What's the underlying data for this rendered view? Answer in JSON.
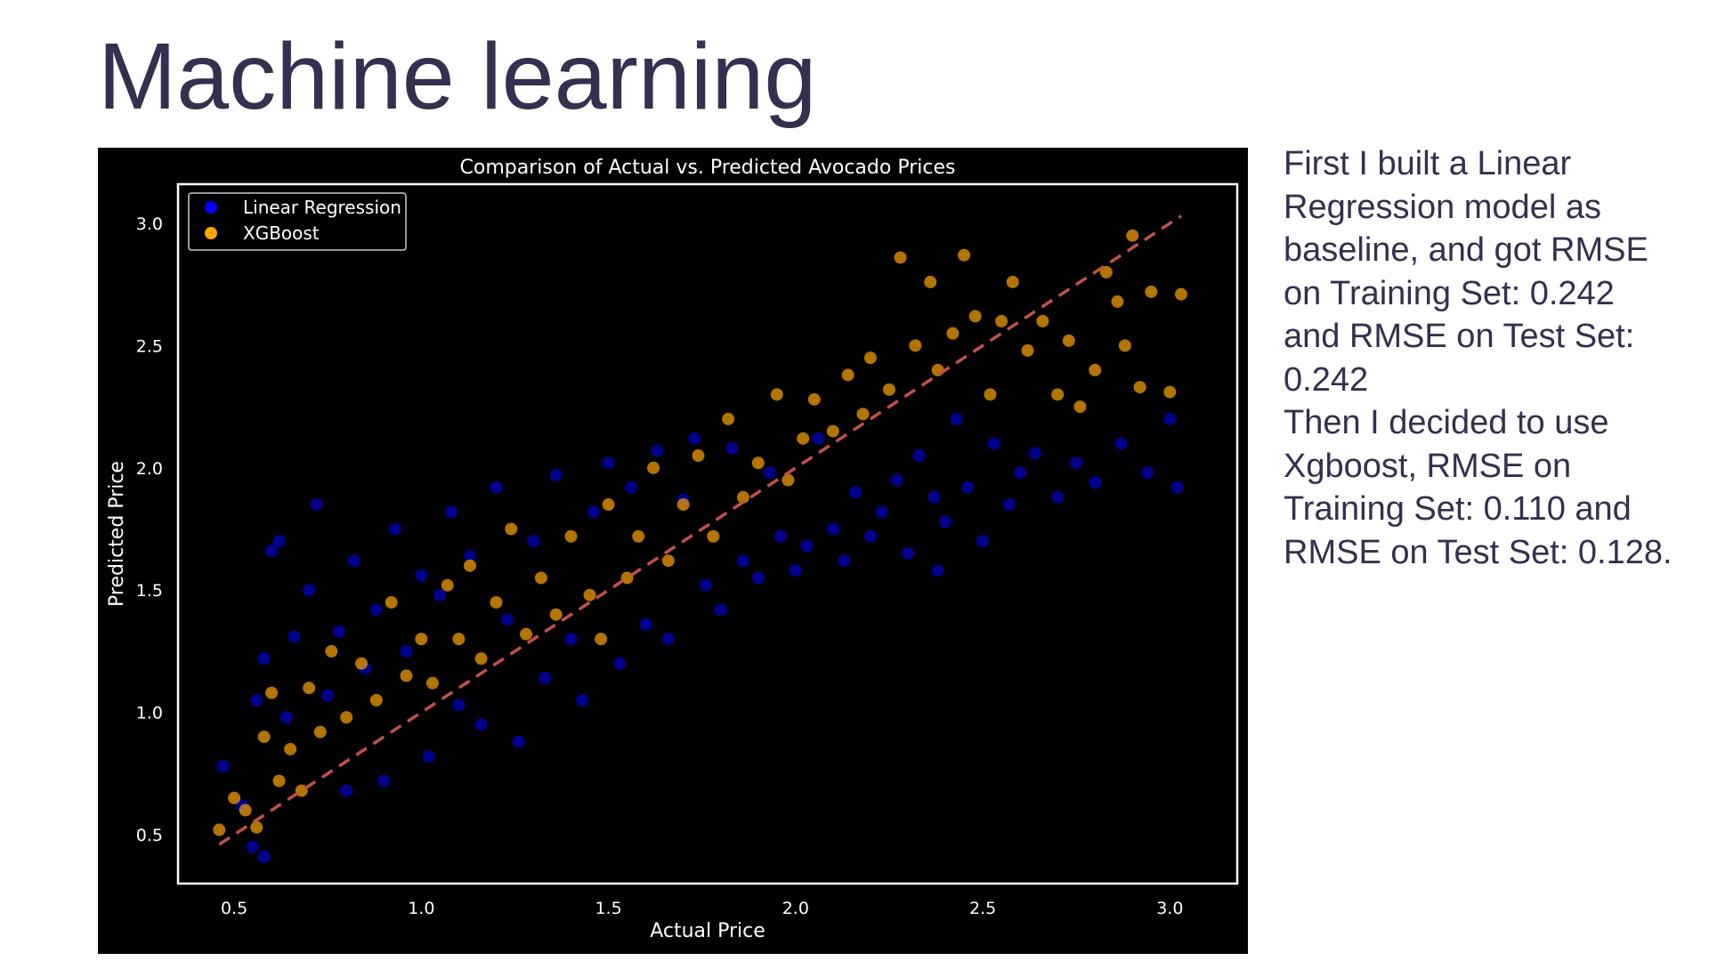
{
  "slide": {
    "title": "Machine learning",
    "description": "First I built a Linear Regression model as baseline, and got RMSE on Training Set: 0.242 and RMSE on Test Set: 0.242\nThen I decided to use Xgboost, RMSE on Training Set: 0.110 and RMSE on Test Set: 0.128.",
    "text_color": "#34304f"
  },
  "chart_data": {
    "type": "scatter",
    "title": "Comparison of Actual vs. Predicted Avocado Prices",
    "xlabel": "Actual Price",
    "ylabel": "Predicted Price",
    "xlim": [
      0.35,
      3.18
    ],
    "ylim": [
      0.3,
      3.16
    ],
    "xticks": [
      "0.5",
      "1.0",
      "1.5",
      "2.0",
      "2.5",
      "3.0"
    ],
    "yticks": [
      "0.5",
      "1.0",
      "1.5",
      "2.0",
      "2.5",
      "3.0"
    ],
    "background": "#000000",
    "legend_position": "top-left",
    "grid": false,
    "reference_line": {
      "from": [
        0.46,
        0.46
      ],
      "to": [
        3.03,
        3.03
      ],
      "style": "dashed",
      "color": "#c0504d"
    },
    "series": [
      {
        "name": "Linear Regression",
        "color": "#0000ff",
        "points": [
          [
            0.47,
            0.78
          ],
          [
            0.52,
            0.62
          ],
          [
            0.55,
            0.45
          ],
          [
            0.58,
            0.41
          ],
          [
            0.56,
            1.05
          ],
          [
            0.58,
            1.22
          ],
          [
            0.6,
            1.66
          ],
          [
            0.62,
            1.7
          ],
          [
            0.64,
            0.98
          ],
          [
            0.66,
            1.31
          ],
          [
            0.7,
            1.5
          ],
          [
            0.72,
            1.85
          ],
          [
            0.75,
            1.07
          ],
          [
            0.78,
            1.33
          ],
          [
            0.8,
            0.68
          ],
          [
            0.82,
            1.62
          ],
          [
            0.85,
            1.18
          ],
          [
            0.88,
            1.42
          ],
          [
            0.9,
            0.72
          ],
          [
            0.93,
            1.75
          ],
          [
            0.96,
            1.25
          ],
          [
            1.0,
            1.56
          ],
          [
            1.02,
            0.82
          ],
          [
            1.05,
            1.48
          ],
          [
            1.08,
            1.82
          ],
          [
            1.1,
            1.03
          ],
          [
            1.13,
            1.64
          ],
          [
            1.16,
            0.95
          ],
          [
            1.2,
            1.92
          ],
          [
            1.23,
            1.38
          ],
          [
            1.26,
            0.88
          ],
          [
            1.3,
            1.7
          ],
          [
            1.33,
            1.14
          ],
          [
            1.36,
            1.97
          ],
          [
            1.4,
            1.3
          ],
          [
            1.43,
            1.05
          ],
          [
            1.46,
            1.82
          ],
          [
            1.5,
            2.02
          ],
          [
            1.53,
            1.2
          ],
          [
            1.56,
            1.92
          ],
          [
            1.6,
            1.36
          ],
          [
            1.63,
            2.07
          ],
          [
            1.66,
            1.3
          ],
          [
            1.7,
            1.87
          ],
          [
            1.73,
            2.12
          ],
          [
            1.76,
            1.52
          ],
          [
            1.8,
            1.42
          ],
          [
            1.83,
            2.08
          ],
          [
            1.86,
            1.62
          ],
          [
            1.9,
            1.55
          ],
          [
            1.93,
            1.98
          ],
          [
            1.96,
            1.72
          ],
          [
            2.0,
            1.58
          ],
          [
            2.03,
            1.68
          ],
          [
            2.06,
            2.12
          ],
          [
            2.1,
            1.75
          ],
          [
            2.13,
            1.62
          ],
          [
            2.16,
            1.9
          ],
          [
            2.2,
            1.72
          ],
          [
            2.23,
            1.82
          ],
          [
            2.27,
            1.95
          ],
          [
            2.3,
            1.65
          ],
          [
            2.33,
            2.05
          ],
          [
            2.37,
            1.88
          ],
          [
            2.4,
            1.78
          ],
          [
            2.43,
            2.2
          ],
          [
            2.46,
            1.92
          ],
          [
            2.5,
            1.7
          ],
          [
            2.53,
            2.1
          ],
          [
            2.57,
            1.85
          ],
          [
            2.6,
            1.98
          ],
          [
            2.64,
            2.06
          ],
          [
            2.7,
            1.88
          ],
          [
            2.75,
            2.02
          ],
          [
            2.8,
            1.94
          ],
          [
            2.87,
            2.1
          ],
          [
            2.94,
            1.98
          ],
          [
            3.0,
            2.2
          ],
          [
            3.02,
            1.92
          ],
          [
            2.38,
            1.58
          ]
        ]
      },
      {
        "name": "XGBoost",
        "color": "#ffa500",
        "points": [
          [
            0.46,
            0.52
          ],
          [
            0.5,
            0.65
          ],
          [
            0.53,
            0.6
          ],
          [
            0.56,
            0.53
          ],
          [
            0.58,
            0.9
          ],
          [
            0.6,
            1.08
          ],
          [
            0.62,
            0.72
          ],
          [
            0.65,
            0.85
          ],
          [
            0.68,
            0.68
          ],
          [
            0.7,
            1.1
          ],
          [
            0.73,
            0.92
          ],
          [
            0.76,
            1.25
          ],
          [
            0.8,
            0.98
          ],
          [
            0.84,
            1.2
          ],
          [
            0.88,
            1.05
          ],
          [
            0.92,
            1.45
          ],
          [
            0.96,
            1.15
          ],
          [
            1.0,
            1.3
          ],
          [
            1.03,
            1.12
          ],
          [
            1.07,
            1.52
          ],
          [
            1.1,
            1.3
          ],
          [
            1.13,
            1.6
          ],
          [
            1.16,
            1.22
          ],
          [
            1.2,
            1.45
          ],
          [
            1.24,
            1.75
          ],
          [
            1.28,
            1.32
          ],
          [
            1.32,
            1.55
          ],
          [
            1.36,
            1.4
          ],
          [
            1.4,
            1.72
          ],
          [
            1.45,
            1.48
          ],
          [
            1.5,
            1.85
          ],
          [
            1.55,
            1.55
          ],
          [
            1.58,
            1.72
          ],
          [
            1.62,
            2.0
          ],
          [
            1.66,
            1.62
          ],
          [
            1.7,
            1.85
          ],
          [
            1.74,
            2.05
          ],
          [
            1.78,
            1.72
          ],
          [
            1.82,
            2.2
          ],
          [
            1.86,
            1.88
          ],
          [
            1.9,
            2.02
          ],
          [
            1.95,
            2.3
          ],
          [
            1.98,
            1.95
          ],
          [
            2.02,
            2.12
          ],
          [
            2.05,
            2.28
          ],
          [
            2.1,
            2.15
          ],
          [
            2.14,
            2.38
          ],
          [
            2.18,
            2.22
          ],
          [
            2.2,
            2.45
          ],
          [
            2.25,
            2.32
          ],
          [
            2.28,
            2.86
          ],
          [
            2.32,
            2.5
          ],
          [
            2.36,
            2.76
          ],
          [
            2.38,
            2.4
          ],
          [
            2.42,
            2.55
          ],
          [
            2.45,
            2.87
          ],
          [
            2.48,
            2.62
          ],
          [
            2.52,
            2.3
          ],
          [
            2.55,
            2.6
          ],
          [
            2.58,
            2.76
          ],
          [
            2.62,
            2.48
          ],
          [
            2.66,
            2.6
          ],
          [
            2.7,
            2.3
          ],
          [
            2.73,
            2.52
          ],
          [
            2.76,
            2.25
          ],
          [
            2.8,
            2.4
          ],
          [
            2.83,
            2.8
          ],
          [
            2.86,
            2.68
          ],
          [
            2.88,
            2.5
          ],
          [
            2.9,
            2.95
          ],
          [
            2.92,
            2.33
          ],
          [
            2.95,
            2.72
          ],
          [
            3.0,
            2.31
          ],
          [
            3.03,
            2.71
          ],
          [
            1.48,
            1.3
          ]
        ]
      }
    ]
  }
}
